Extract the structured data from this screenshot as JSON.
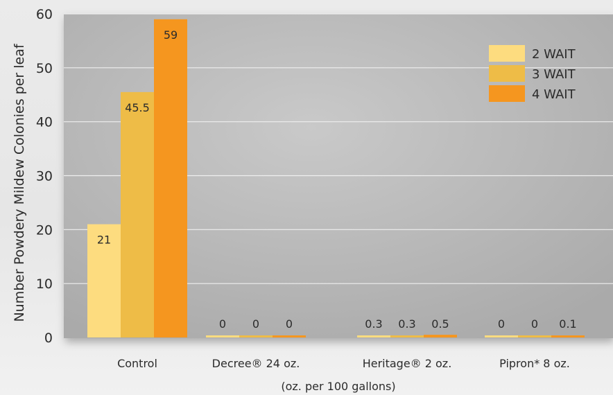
{
  "chart_data": {
    "type": "bar",
    "title": "",
    "ylabel": "Number Powdery Mildew Colonies per leaf",
    "xlabel": "(oz. per 100 gallons)",
    "ylim": [
      0,
      60
    ],
    "yticks": [
      0,
      10,
      20,
      30,
      40,
      50,
      60
    ],
    "grid": true,
    "legend": "top-right",
    "categories": [
      "Control",
      "Decree® 24 oz.",
      "Heritage® 2 oz.",
      "Pipron* 8 oz."
    ],
    "series": [
      {
        "name": "2 WAIT",
        "color": "#fddc7f",
        "values": [
          21,
          0,
          0.3,
          0
        ],
        "labels": [
          "21",
          "0",
          "0.3",
          "0"
        ]
      },
      {
        "name": "3 WAIT",
        "color": "#eebc47",
        "values": [
          45.5,
          0,
          0.3,
          0
        ],
        "labels": [
          "45.5",
          "0",
          "0.3",
          "0"
        ]
      },
      {
        "name": "4 WAIT",
        "color": "#f5961f",
        "values": [
          59,
          0,
          0.5,
          0.1
        ],
        "labels": [
          "59",
          "0",
          "0.5",
          "0.1"
        ]
      }
    ]
  }
}
